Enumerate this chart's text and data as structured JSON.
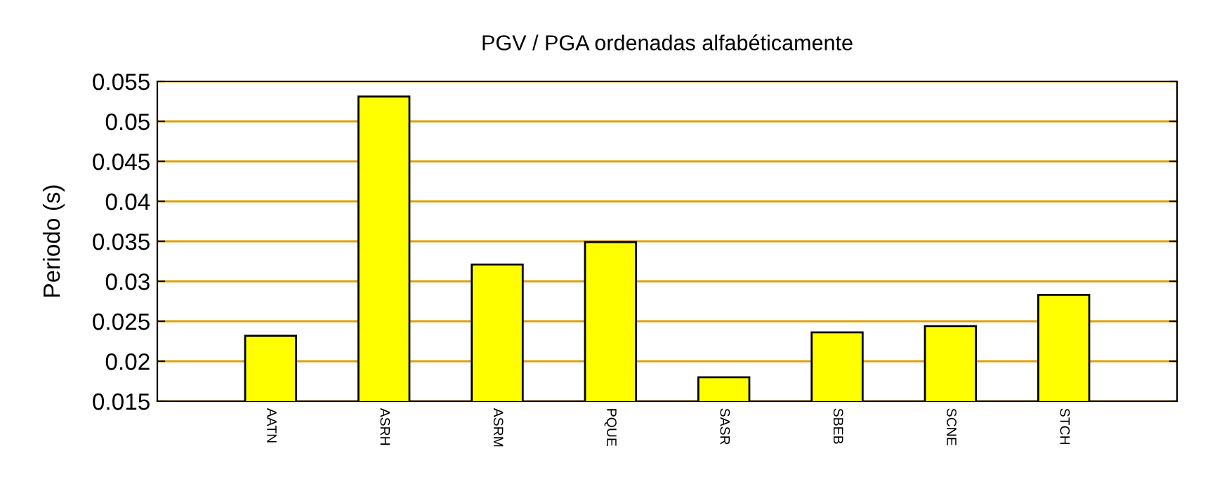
{
  "chart_data": {
    "type": "bar",
    "title": "PGV / PGA ordenadas alfabéticamente",
    "ylabel": "Periodo (s)",
    "categories": [
      "AATN",
      "ASRH",
      "ASRM",
      "PQUE",
      "SASR",
      "SBEB",
      "SCNE",
      "STCH"
    ],
    "values": [
      0.0232,
      0.0531,
      0.0321,
      0.0349,
      0.018,
      0.0236,
      0.0244,
      0.0283
    ],
    "color": "#ffff00",
    "ylim": [
      0.015,
      0.055
    ],
    "yticks": [
      0.015,
      0.02,
      0.025,
      0.03,
      0.035,
      0.04,
      0.045,
      0.05,
      0.055
    ],
    "grid": "y"
  }
}
